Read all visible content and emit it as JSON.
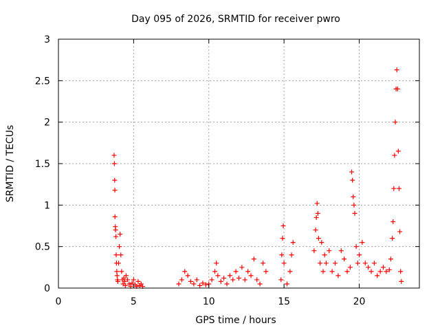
{
  "chart_data": {
    "type": "scatter",
    "title": "Day 095 of 2026, SRMTID for receiver pwro",
    "xlabel": "GPS time / hours",
    "ylabel": "SRMTID / TECUs",
    "xlim": [
      0,
      24
    ],
    "ylim": [
      0,
      3
    ],
    "xticks": [
      0,
      5,
      10,
      15,
      20
    ],
    "xtick_labels": [
      "0",
      "5",
      "10",
      "15",
      "20"
    ],
    "yticks": [
      0,
      0.5,
      1,
      1.5,
      2,
      2.5,
      3
    ],
    "ytick_labels": [
      "0",
      "0.5",
      "1",
      "1.5",
      "2",
      "2.5",
      "3"
    ],
    "grid": true,
    "marker": "+",
    "series": [
      {
        "name": "SRMTID",
        "color": "#ff0000",
        "x": [
          3.7,
          3.72,
          3.74,
          3.75,
          3.76,
          3.78,
          3.8,
          3.82,
          3.84,
          3.86,
          3.88,
          3.9,
          3.92,
          3.95,
          4.0,
          4.05,
          4.1,
          4.15,
          4.2,
          4.25,
          4.3,
          4.35,
          4.4,
          4.45,
          4.5,
          4.6,
          4.7,
          4.8,
          4.9,
          5.0,
          5.1,
          5.2,
          5.3,
          5.4,
          5.5,
          5.6,
          8.0,
          8.2,
          8.4,
          8.6,
          8.8,
          9.0,
          9.2,
          9.4,
          9.6,
          9.8,
          10.0,
          10.2,
          10.4,
          10.5,
          10.6,
          10.8,
          11.0,
          11.2,
          11.4,
          11.6,
          11.8,
          12.0,
          12.2,
          12.4,
          12.6,
          12.8,
          13.0,
          13.2,
          13.4,
          13.6,
          13.8,
          14.8,
          14.85,
          14.9,
          14.95,
          15.0,
          15.2,
          15.4,
          15.5,
          15.6,
          17.0,
          17.1,
          17.15,
          17.2,
          17.25,
          17.3,
          17.4,
          17.5,
          17.6,
          17.7,
          17.8,
          18.0,
          18.2,
          18.4,
          18.6,
          18.8,
          19.0,
          19.2,
          19.4,
          19.5,
          19.55,
          19.6,
          19.65,
          19.7,
          19.8,
          19.9,
          20.0,
          20.2,
          20.4,
          20.6,
          20.8,
          21.0,
          21.2,
          21.4,
          21.6,
          21.8,
          22.0,
          22.1,
          22.2,
          22.25,
          22.3,
          22.35,
          22.4,
          22.45,
          22.5,
          22.55,
          22.6,
          22.65,
          22.7,
          22.75,
          22.8
        ],
        "y": [
          1.6,
          1.5,
          1.3,
          1.18,
          0.86,
          0.74,
          0.7,
          0.62,
          0.4,
          0.3,
          0.2,
          0.15,
          0.1,
          0.08,
          0.3,
          0.5,
          0.65,
          0.4,
          0.2,
          0.1,
          0.05,
          0.12,
          0.08,
          0.03,
          0.15,
          0.1,
          0.05,
          0.02,
          0.06,
          0.1,
          0.04,
          0.02,
          0.08,
          0.03,
          0.05,
          0.02,
          0.05,
          0.1,
          0.2,
          0.15,
          0.08,
          0.05,
          0.1,
          0.03,
          0.06,
          0.04,
          0.05,
          0.1,
          0.2,
          0.3,
          0.15,
          0.08,
          0.12,
          0.05,
          0.15,
          0.1,
          0.2,
          0.12,
          0.25,
          0.1,
          0.2,
          0.15,
          0.35,
          0.1,
          0.05,
          0.3,
          0.2,
          0.1,
          0.4,
          0.6,
          0.75,
          0.3,
          0.05,
          0.2,
          0.4,
          0.55,
          0.45,
          0.7,
          0.85,
          1.02,
          0.9,
          0.6,
          0.3,
          0.55,
          0.2,
          0.4,
          0.3,
          0.45,
          0.2,
          0.3,
          0.15,
          0.45,
          0.35,
          0.2,
          0.25,
          1.4,
          1.3,
          1.1,
          1.0,
          0.9,
          0.5,
          0.3,
          0.4,
          0.55,
          0.3,
          0.25,
          0.2,
          0.3,
          0.15,
          0.2,
          0.25,
          0.2,
          0.22,
          0.35,
          0.6,
          0.8,
          1.2,
          1.6,
          2.0,
          2.4,
          2.63,
          2.4,
          1.65,
          1.2,
          0.68,
          0.2,
          0.08
        ]
      }
    ]
  }
}
